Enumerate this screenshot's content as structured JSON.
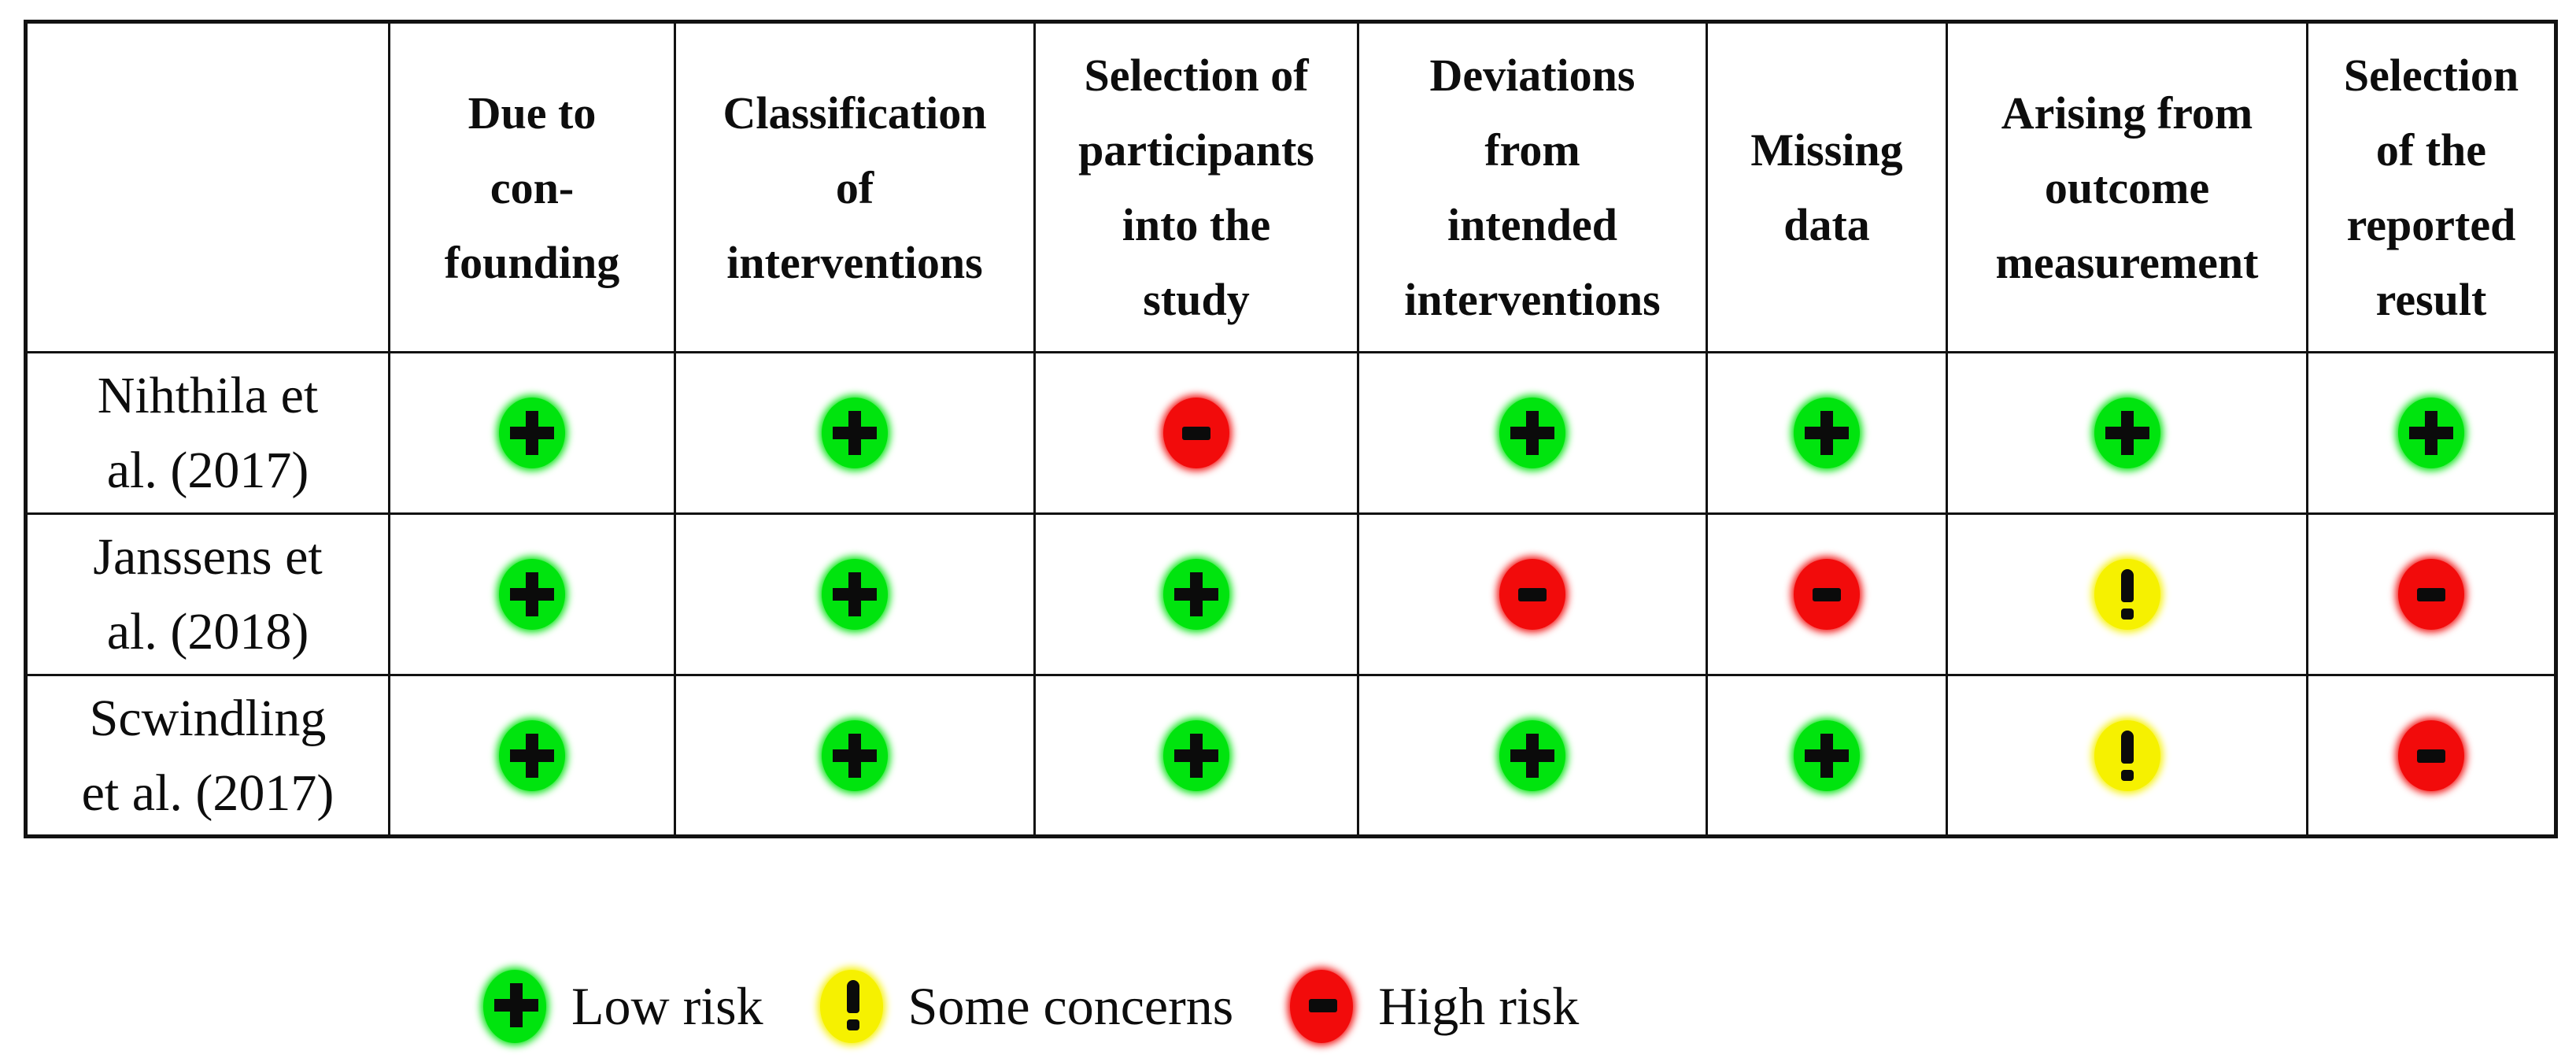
{
  "table": {
    "corner_label": "",
    "columns": [
      "Due to\ncon-\nfounding",
      "Classification\nof\ninterventions",
      "Selection of\nparticipants\ninto the\nstudy",
      "Deviations\nfrom\nintended\ninterventions",
      "Missing\ndata",
      "Arising from\noutcome\nmeasurement",
      "Selection\nof the\nreported\nresult"
    ],
    "rows": [
      {
        "study": "Nihthila et\nal. (2017)",
        "ratings": [
          "low",
          "low",
          "high",
          "low",
          "low",
          "low",
          "low"
        ]
      },
      {
        "study": "Janssens et\nal. (2018)",
        "ratings": [
          "low",
          "low",
          "low",
          "high",
          "high",
          "some",
          "high"
        ]
      },
      {
        "study": "Scwindling\net al. (2017)",
        "ratings": [
          "low",
          "low",
          "low",
          "low",
          "low",
          "some",
          "high"
        ]
      }
    ]
  },
  "ratings": {
    "low": {
      "symbol": "+",
      "label": "Low risk",
      "color": "#00e40e"
    },
    "some": {
      "symbol": "!",
      "label": "Some concerns",
      "color": "#f6f100"
    },
    "high": {
      "symbol": "-",
      "label": "High risk",
      "color": "#f20b0b"
    }
  },
  "legend": [
    {
      "rating": "low",
      "label": "Low risk"
    },
    {
      "rating": "some",
      "label": "Some concerns"
    },
    {
      "rating": "high",
      "label": "High risk"
    }
  ]
}
